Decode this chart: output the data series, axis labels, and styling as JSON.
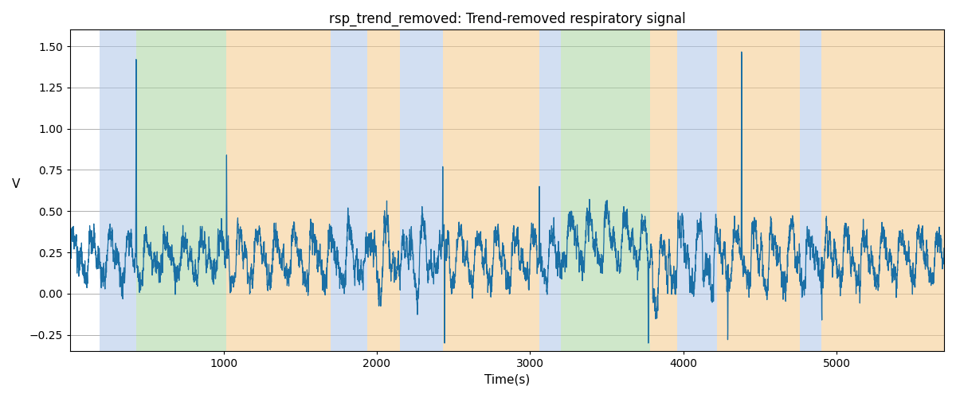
{
  "title": "rsp_trend_removed: Trend-removed respiratory signal",
  "xlabel": "Time(s)",
  "ylabel": "V",
  "xlim": [
    0,
    5700
  ],
  "ylim": [
    -0.35,
    1.6
  ],
  "line_color": "#1a6fa5",
  "line_width": 0.9,
  "background_color": "#ffffff",
  "grid_color": "#b0b0b0",
  "figsize": [
    12.0,
    5.0
  ],
  "dpi": 100,
  "regions": [
    {
      "xmin": 190,
      "xmax": 430,
      "color": "#aec6e8",
      "alpha": 0.55
    },
    {
      "xmin": 430,
      "xmax": 1020,
      "color": "#a8d4a0",
      "alpha": 0.55
    },
    {
      "xmin": 1020,
      "xmax": 1700,
      "color": "#f5c98a",
      "alpha": 0.55
    },
    {
      "xmin": 1700,
      "xmax": 1940,
      "color": "#aec6e8",
      "alpha": 0.55
    },
    {
      "xmin": 1940,
      "xmax": 2150,
      "color": "#f5c98a",
      "alpha": 0.55
    },
    {
      "xmin": 2150,
      "xmax": 2430,
      "color": "#aec6e8",
      "alpha": 0.55
    },
    {
      "xmin": 2430,
      "xmax": 3060,
      "color": "#f5c98a",
      "alpha": 0.55
    },
    {
      "xmin": 3060,
      "xmax": 3200,
      "color": "#aec6e8",
      "alpha": 0.55
    },
    {
      "xmin": 3200,
      "xmax": 3780,
      "color": "#a8d4a0",
      "alpha": 0.55
    },
    {
      "xmin": 3780,
      "xmax": 3960,
      "color": "#f5c98a",
      "alpha": 0.55
    },
    {
      "xmin": 3960,
      "xmax": 4220,
      "color": "#aec6e8",
      "alpha": 0.55
    },
    {
      "xmin": 4220,
      "xmax": 4760,
      "color": "#f5c98a",
      "alpha": 0.55
    },
    {
      "xmin": 4760,
      "xmax": 4900,
      "color": "#aec6e8",
      "alpha": 0.55
    },
    {
      "xmin": 4900,
      "xmax": 5700,
      "color": "#f5c98a",
      "alpha": 0.55
    }
  ],
  "yticks": [
    -0.25,
    0.0,
    0.25,
    0.5,
    0.75,
    1.0,
    1.25,
    1.5
  ],
  "xticks": [
    1000,
    2000,
    3000,
    4000,
    5000
  ],
  "seed": 7
}
